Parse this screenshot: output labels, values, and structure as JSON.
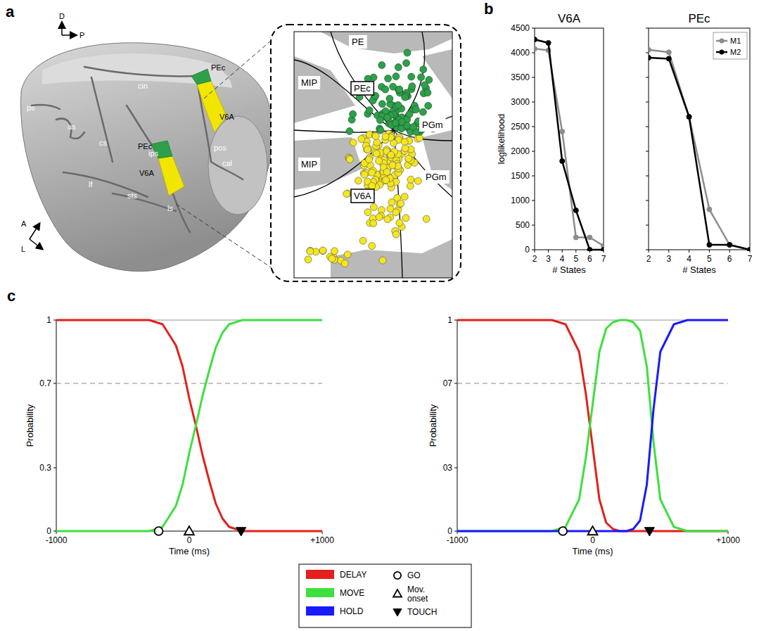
{
  "panels": {
    "a": "a",
    "b": "b",
    "c": "c"
  },
  "diagram": {
    "orientation": [
      "D",
      "P",
      "A",
      "L"
    ],
    "brain_labels": [
      "ps",
      "as",
      "cs",
      "ips",
      "lf",
      "sts",
      "ls",
      "cin",
      "PEc",
      "V6A",
      "PEc",
      "V6A",
      "pos",
      "cal"
    ],
    "inset_labels": [
      "PE",
      "MIP",
      "PEc",
      "PGm",
      "MIP",
      "V6A",
      "PGm"
    ]
  },
  "chart_data": [
    {
      "type": "line",
      "title": "V6A",
      "x_label": "# States",
      "y_label": "loglikelihood",
      "x": [
        2,
        3,
        4,
        5,
        6,
        7
      ],
      "xlim": [
        2,
        7
      ],
      "xticks": [
        2,
        3,
        4,
        5,
        6,
        7
      ],
      "ylim": [
        0,
        4500
      ],
      "yticks": [
        0,
        500,
        1000,
        1500,
        2000,
        2500,
        3000,
        3500,
        4000,
        4500
      ],
      "marker": "circle",
      "series": [
        {
          "color": "#8c8c8c",
          "values": [
            4080,
            4050,
            2400,
            250,
            250,
            80
          ]
        },
        {
          "color": "#000000",
          "values": [
            4270,
            4200,
            1800,
            800,
            0,
            0
          ]
        }
      ]
    },
    {
      "type": "line",
      "title": "PEc",
      "x_label": "# States",
      "x": [
        2,
        3,
        4,
        5,
        6,
        7
      ],
      "xlim": [
        2,
        7
      ],
      "xticks": [
        2,
        3,
        4,
        5,
        6,
        7
      ],
      "ylim": [
        0,
        4500
      ],
      "yticks": [
        0,
        500,
        1000,
        1500,
        2000,
        2500,
        3000,
        3500,
        4000,
        4500
      ],
      "tick_labels": "x",
      "legend": "top-right",
      "marker": "circle",
      "series": [
        {
          "name": "M1",
          "color": "#8c8c8c",
          "values": [
            4060,
            4010,
            2700,
            820,
            100,
            0
          ]
        },
        {
          "name": "M2",
          "color": "#000000",
          "values": [
            3900,
            3880,
            2700,
            100,
            100,
            0
          ]
        }
      ]
    },
    {
      "type": "line",
      "x_label": "Time (ms)",
      "y_label": "Probability",
      "x": [
        -1000,
        -500,
        -300,
        -200,
        -100,
        -50,
        0,
        50,
        100,
        150,
        200,
        250,
        300,
        350,
        400,
        450,
        500,
        600,
        700,
        1000
      ],
      "xlim": [
        -1000,
        1000
      ],
      "xticks": [
        -1000,
        0,
        {
          "value": 1000,
          "label": "+1000"
        }
      ],
      "ylim": [
        0,
        1
      ],
      "yticks": [
        0,
        0.3,
        0.7,
        1
      ],
      "threshold": 0.7,
      "series": [
        {
          "color": "#e3201b",
          "values": [
            1,
            1,
            1,
            0.98,
            0.88,
            0.78,
            0.63,
            0.5,
            0.36,
            0.24,
            0.13,
            0.06,
            0.02,
            0.01,
            0,
            0,
            0,
            0,
            0,
            0
          ]
        },
        {
          "color": "#3ee03e",
          "values": [
            0,
            0,
            0,
            0.02,
            0.12,
            0.22,
            0.37,
            0.5,
            0.64,
            0.76,
            0.87,
            0.94,
            0.98,
            0.99,
            1,
            1,
            1,
            1,
            1,
            1
          ]
        }
      ],
      "events": [
        {
          "x": -230,
          "marker": "circle"
        },
        {
          "x": 0,
          "marker": "triangle"
        },
        {
          "x": 390,
          "marker": "triangle-down"
        }
      ]
    },
    {
      "type": "line",
      "x_label": "Time (ms)",
      "y_label": "Probability",
      "x": [
        -1000,
        -500,
        -300,
        -200,
        -100,
        -50,
        0,
        50,
        100,
        150,
        200,
        250,
        300,
        350,
        400,
        450,
        500,
        600,
        700,
        1000
      ],
      "xlim": [
        -1000,
        1000
      ],
      "xticks": [
        -1000,
        0,
        {
          "value": 1000,
          "label": "+1000"
        }
      ],
      "ylim": [
        0,
        1
      ],
      "yticks": [
        0,
        {
          "value": 0.3,
          "label": "03"
        },
        {
          "value": 0.7,
          "label": "07"
        },
        1
      ],
      "threshold": 0.7,
      "legend": "bottom",
      "series": [
        {
          "name": "DELAY",
          "color": "#e3201b",
          "values": [
            1,
            1,
            1,
            0.98,
            0.85,
            0.65,
            0.4,
            0.15,
            0.04,
            0.01,
            0,
            0,
            0,
            0,
            0,
            0,
            0,
            0,
            0,
            0
          ]
        },
        {
          "name": "MOVE",
          "color": "#3ee03e",
          "values": [
            0,
            0,
            0,
            0.02,
            0.15,
            0.35,
            0.6,
            0.85,
            0.96,
            0.99,
            1,
            1,
            0.99,
            0.95,
            0.78,
            0.42,
            0.15,
            0.02,
            0,
            0
          ]
        },
        {
          "name": "HOLD",
          "color": "#1a1aff",
          "values": [
            0,
            0,
            0,
            0,
            0,
            0,
            0,
            0,
            0,
            0,
            0,
            0,
            0.01,
            0.05,
            0.22,
            0.58,
            0.85,
            0.98,
            1,
            1
          ]
        }
      ],
      "events": [
        {
          "name": "GO",
          "x": -220,
          "marker": "circle"
        },
        {
          "name": "Mov. onset",
          "x": 0,
          "marker": "triangle"
        },
        {
          "name": "TOUCH",
          "x": 420,
          "marker": "triangle-down"
        }
      ]
    }
  ]
}
